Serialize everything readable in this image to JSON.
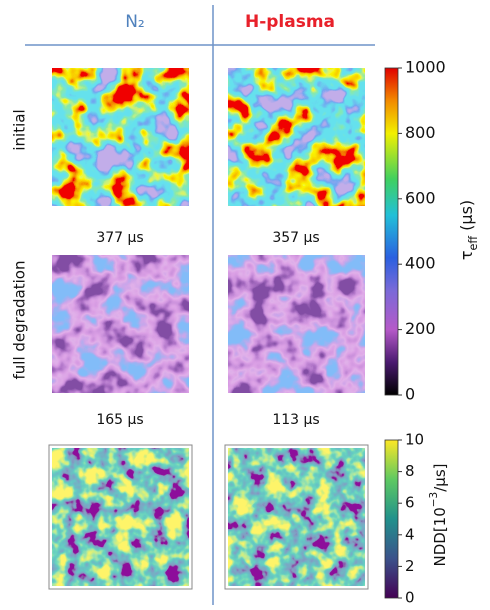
{
  "columns": [
    {
      "label": "N₂"
    },
    {
      "label": "H-plasma"
    }
  ],
  "rows": [
    {
      "label": "initial",
      "values": [
        "377 µs",
        "357 µs"
      ]
    },
    {
      "label": "full degradation",
      "values": [
        "165 µs",
        "113 µs"
      ]
    }
  ],
  "colorbars": [
    {
      "label": {
        "symbol": "τ",
        "subscript": "eff",
        "unit": " (µs)"
      },
      "lim": [
        0,
        1000
      ],
      "ticks": [
        0,
        200,
        400,
        600,
        800,
        1000
      ]
    },
    {
      "label": {
        "text": "NDD[10",
        "superscript": "−3",
        "unit": "/µs]"
      },
      "lim": [
        0,
        10
      ],
      "ticks": [
        0,
        2,
        4,
        6,
        8,
        10
      ]
    }
  ]
}
